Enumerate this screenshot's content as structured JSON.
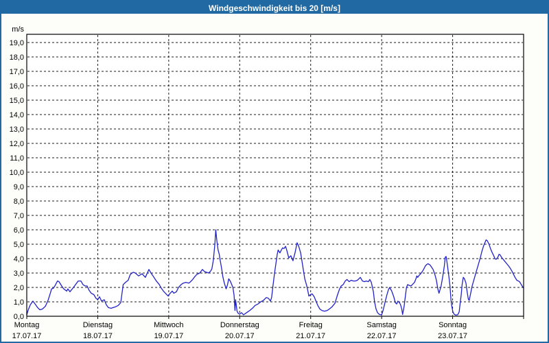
{
  "window": {
    "title": "Windgeschwindigkeit bis 20 [m/s]"
  },
  "colors": {
    "chrome_blue": "#2069A2",
    "line_blue": "#2121C8",
    "grid_black": "#1A1A1A",
    "plot_background": "#FFFFFF",
    "page_background": "#FDFEFA",
    "title_text": "#FFFFFF",
    "axis_text": "#000000"
  },
  "chart_data": {
    "type": "line",
    "title": "Windgeschwindigkeit bis 20 [m/s]",
    "unit_label": "m/s",
    "ylabel": "m/s",
    "ylim": [
      0,
      19.5
    ],
    "ytick_step": 1.0,
    "ytick_labels": [
      "0,0",
      "1,0",
      "2,0",
      "3,0",
      "4,0",
      "5,0",
      "6,0",
      "7,0",
      "8,0",
      "9,0",
      "10,0",
      "11,0",
      "12,0",
      "13,0",
      "14,0",
      "15,0",
      "16,0",
      "17,0",
      "18,0",
      "19,0"
    ],
    "grid": "dashed",
    "legend_position": "none",
    "x_axis_type": "time",
    "x_total_hours": 168,
    "x_days": [
      {
        "label": "Montag",
        "date": "17.07.17"
      },
      {
        "label": "Dienstag",
        "date": "18.07.17"
      },
      {
        "label": "Mittwoch",
        "date": "19.07.17"
      },
      {
        "label": "Donnerstag",
        "date": "20.07.17"
      },
      {
        "label": "Freitag",
        "date": "21.07.17"
      },
      {
        "label": "Samstag",
        "date": "22.07.17"
      },
      {
        "label": "Sonntag",
        "date": "23.07.17"
      }
    ],
    "series": [
      {
        "name": "Windgeschwindigkeit",
        "unit": "m/s",
        "color": "#2121C8",
        "points": [
          [
            0,
            0.1
          ],
          [
            0.5,
            0.45
          ],
          [
            1.2,
            0.8
          ],
          [
            2.1,
            1.05
          ],
          [
            3,
            0.8
          ],
          [
            3.7,
            0.6
          ],
          [
            4.4,
            0.45
          ],
          [
            5.3,
            0.5
          ],
          [
            6.3,
            0.7
          ],
          [
            7.2,
            1.1
          ],
          [
            7.9,
            1.55
          ],
          [
            8.4,
            1.9
          ],
          [
            9,
            1.95
          ],
          [
            9.5,
            2.1
          ],
          [
            10.4,
            2.45
          ],
          [
            10.9,
            2.4
          ],
          [
            11.8,
            2.1
          ],
          [
            12.5,
            1.9
          ],
          [
            13.5,
            1.75
          ],
          [
            13.9,
            1.9
          ],
          [
            14.6,
            1.7
          ],
          [
            15.8,
            2
          ],
          [
            16.5,
            2.2
          ],
          [
            17.4,
            2.45
          ],
          [
            18.3,
            2.45
          ],
          [
            19,
            2.2
          ],
          [
            19.7,
            2.1
          ],
          [
            20.4,
            2.1
          ],
          [
            21.1,
            1.8
          ],
          [
            21.8,
            1.6
          ],
          [
            22.7,
            1.5
          ],
          [
            23.4,
            1.25
          ],
          [
            24,
            1.15
          ],
          [
            24.6,
            1.35
          ],
          [
            25.3,
            1.05
          ],
          [
            26.2,
            1.15
          ],
          [
            26.9,
            0.8
          ],
          [
            27.6,
            0.6
          ],
          [
            28.5,
            0.55
          ],
          [
            29.2,
            0.6
          ],
          [
            29.9,
            0.65
          ],
          [
            30.9,
            0.75
          ],
          [
            31.8,
            0.95
          ],
          [
            32.2,
            1.6
          ],
          [
            32.6,
            2.2
          ],
          [
            33.4,
            2.35
          ],
          [
            34.3,
            2.5
          ],
          [
            35,
            2.9
          ],
          [
            36,
            3.05
          ],
          [
            36.7,
            3
          ],
          [
            37.8,
            2.8
          ],
          [
            39,
            2.95
          ],
          [
            40.1,
            2.7
          ],
          [
            41.3,
            3.25
          ],
          [
            42,
            3
          ],
          [
            42.7,
            2.8
          ],
          [
            43.8,
            2.45
          ],
          [
            44.8,
            2.2
          ],
          [
            45.5,
            1.95
          ],
          [
            46.2,
            1.75
          ],
          [
            47.1,
            1.55
          ],
          [
            47.8,
            1.4
          ],
          [
            48.5,
            1.6
          ],
          [
            49.2,
            1.75
          ],
          [
            49.7,
            1.6
          ],
          [
            50.6,
            1.7
          ],
          [
            51.3,
            2
          ],
          [
            52.2,
            2.2
          ],
          [
            52.9,
            2.3
          ],
          [
            53.8,
            2.35
          ],
          [
            54.8,
            2.3
          ],
          [
            55.4,
            2.4
          ],
          [
            56.1,
            2.55
          ],
          [
            56.8,
            2.75
          ],
          [
            57.5,
            2.9
          ],
          [
            58.5,
            3
          ],
          [
            59.4,
            3.25
          ],
          [
            60.1,
            3.1
          ],
          [
            60.8,
            3.05
          ],
          [
            61.5,
            3
          ],
          [
            62.2,
            3.15
          ],
          [
            62.6,
            3.3
          ],
          [
            63.1,
            3.9
          ],
          [
            63.6,
            5
          ],
          [
            63.9,
            6
          ],
          [
            64.3,
            5.2
          ],
          [
            64.7,
            4.6
          ],
          [
            65.1,
            4.3
          ],
          [
            65.4,
            3.9
          ],
          [
            65.9,
            3.3
          ],
          [
            66.3,
            2.75
          ],
          [
            66.8,
            2.3
          ],
          [
            67.4,
            1.9
          ],
          [
            67.9,
            2.2
          ],
          [
            68.3,
            2.6
          ],
          [
            68.8,
            2.45
          ],
          [
            69.3,
            2.2
          ],
          [
            69.7,
            2
          ],
          [
            70.1,
            1.45
          ],
          [
            70.4,
            0.4
          ],
          [
            70.6,
            1.15
          ],
          [
            71.1,
            0.35
          ],
          [
            71.5,
            0.2
          ],
          [
            72,
            0.15
          ],
          [
            72.6,
            0.25
          ],
          [
            73.3,
            0.1
          ],
          [
            74,
            0.2
          ],
          [
            74.7,
            0.3
          ],
          [
            75.4,
            0.4
          ],
          [
            76.3,
            0.55
          ],
          [
            77.2,
            0.75
          ],
          [
            78.2,
            0.85
          ],
          [
            79.1,
            1
          ],
          [
            80,
            1.1
          ],
          [
            81,
            1.3
          ],
          [
            81.7,
            1.25
          ],
          [
            82.4,
            1.05
          ],
          [
            82.8,
            1.3
          ],
          [
            83.3,
            2.2
          ],
          [
            83.8,
            3
          ],
          [
            84.2,
            3.6
          ],
          [
            84.7,
            4.3
          ],
          [
            85,
            4.6
          ],
          [
            85.6,
            4.4
          ],
          [
            86.1,
            4.6
          ],
          [
            86.5,
            4.75
          ],
          [
            87,
            4.7
          ],
          [
            87.5,
            4.85
          ],
          [
            87.9,
            4.6
          ],
          [
            88.6,
            4.05
          ],
          [
            89.3,
            4.2
          ],
          [
            90,
            3.85
          ],
          [
            90.7,
            4.4
          ],
          [
            91.4,
            5.1
          ],
          [
            91.9,
            4.9
          ],
          [
            92.6,
            4.4
          ],
          [
            93.3,
            3.5
          ],
          [
            94,
            2.6
          ],
          [
            94.7,
            2.1
          ],
          [
            95.4,
            1.4
          ],
          [
            95.9,
            1.5
          ],
          [
            96.5,
            1.55
          ],
          [
            97.2,
            1.35
          ],
          [
            97.7,
            1.1
          ],
          [
            98.4,
            0.75
          ],
          [
            99.1,
            0.5
          ],
          [
            99.8,
            0.4
          ],
          [
            100.7,
            0.35
          ],
          [
            101.6,
            0.4
          ],
          [
            102.3,
            0.5
          ],
          [
            103.2,
            0.65
          ],
          [
            104.2,
            0.9
          ],
          [
            105.1,
            1.5
          ],
          [
            105.8,
            1.9
          ],
          [
            106.3,
            2.1
          ],
          [
            107,
            2.2
          ],
          [
            107.7,
            2.45
          ],
          [
            108.3,
            2.55
          ],
          [
            109,
            2.4
          ],
          [
            109.7,
            2.5
          ],
          [
            110.4,
            2.45
          ],
          [
            111.1,
            2.45
          ],
          [
            111.8,
            2.5
          ],
          [
            112.8,
            2.7
          ],
          [
            113.5,
            2.45
          ],
          [
            114.2,
            2.4
          ],
          [
            114.8,
            2.45
          ],
          [
            115.5,
            2.4
          ],
          [
            116,
            2.55
          ],
          [
            116.5,
            2.35
          ],
          [
            117.2,
            1.7
          ],
          [
            117.6,
            1
          ],
          [
            118.1,
            0.5
          ],
          [
            118.6,
            0.25
          ],
          [
            119.3,
            0.12
          ],
          [
            120,
            0.1
          ],
          [
            120.4,
            0.35
          ],
          [
            120.9,
            0.75
          ],
          [
            121.3,
            1.1
          ],
          [
            121.8,
            1.5
          ],
          [
            122.3,
            1.85
          ],
          [
            122.7,
            2
          ],
          [
            123.4,
            1.75
          ],
          [
            124.1,
            1.35
          ],
          [
            124.6,
            0.95
          ],
          [
            125.1,
            0.85
          ],
          [
            125.5,
            1.05
          ],
          [
            126,
            0.95
          ],
          [
            126.4,
            0.8
          ],
          [
            126.8,
            0.5
          ],
          [
            127.1,
            0.12
          ],
          [
            127.6,
            0.7
          ],
          [
            128.1,
            1.5
          ],
          [
            128.4,
            2
          ],
          [
            128.8,
            2.2
          ],
          [
            129.2,
            2.15
          ],
          [
            129.9,
            2.1
          ],
          [
            130.4,
            2.2
          ],
          [
            131.1,
            2.35
          ],
          [
            131.6,
            2.6
          ],
          [
            131.9,
            2.8
          ],
          [
            132.2,
            2.7
          ],
          [
            132.7,
            2.85
          ],
          [
            133.2,
            2.95
          ],
          [
            133.9,
            3.15
          ],
          [
            134.3,
            3.3
          ],
          [
            134.8,
            3.5
          ],
          [
            135.3,
            3.6
          ],
          [
            135.7,
            3.65
          ],
          [
            136.4,
            3.55
          ],
          [
            136.9,
            3.4
          ],
          [
            137.4,
            3.25
          ],
          [
            138,
            2.9
          ],
          [
            138.5,
            2.5
          ],
          [
            139,
            1.9
          ],
          [
            139.4,
            1.6
          ],
          [
            140.1,
            2.1
          ],
          [
            140.7,
            2.8
          ],
          [
            141.2,
            3.5
          ],
          [
            141.5,
            4.1
          ],
          [
            141.8,
            4.15
          ],
          [
            142.2,
            3.6
          ],
          [
            142.7,
            2.8
          ],
          [
            143.1,
            2.1
          ],
          [
            143.5,
            1
          ],
          [
            143.8,
            0.6
          ],
          [
            144.1,
            0.3
          ],
          [
            144.5,
            0.15
          ],
          [
            145,
            0.08
          ],
          [
            145.7,
            0.1
          ],
          [
            146.2,
            0.3
          ],
          [
            146.5,
            0.8
          ],
          [
            146.9,
            1.5
          ],
          [
            147.2,
            2.2
          ],
          [
            147.6,
            2.7
          ],
          [
            148,
            2.6
          ],
          [
            148.5,
            2.3
          ],
          [
            148.9,
            1.7
          ],
          [
            149.3,
            1.2
          ],
          [
            149.6,
            1.1
          ],
          [
            150.1,
            1.6
          ],
          [
            150.6,
            2.1
          ],
          [
            151.3,
            2.6
          ],
          [
            152,
            3.1
          ],
          [
            152.7,
            3.6
          ],
          [
            153.4,
            4.1
          ],
          [
            153.9,
            4.5
          ],
          [
            154.5,
            4.9
          ],
          [
            155,
            5.15
          ],
          [
            155.3,
            5.3
          ],
          [
            155.7,
            5.25
          ],
          [
            156.3,
            5
          ],
          [
            156.8,
            4.7
          ],
          [
            157.3,
            4.45
          ],
          [
            157.9,
            4.2
          ],
          [
            158.3,
            4
          ],
          [
            158.7,
            3.95
          ],
          [
            159.3,
            4.1
          ],
          [
            159.7,
            4.3
          ],
          [
            160.1,
            4.25
          ],
          [
            160.5,
            4.1
          ],
          [
            161.1,
            3.95
          ],
          [
            161.7,
            3.8
          ],
          [
            162.3,
            3.65
          ],
          [
            162.9,
            3.5
          ],
          [
            163.4,
            3.35
          ],
          [
            164,
            3.15
          ],
          [
            164.5,
            2.95
          ],
          [
            165.1,
            2.7
          ],
          [
            165.7,
            2.5
          ],
          [
            166.2,
            2.45
          ],
          [
            166.6,
            2.4
          ],
          [
            167.2,
            2.2
          ],
          [
            167.5,
            2.1
          ],
          [
            168,
            1.95
          ]
        ]
      }
    ]
  }
}
